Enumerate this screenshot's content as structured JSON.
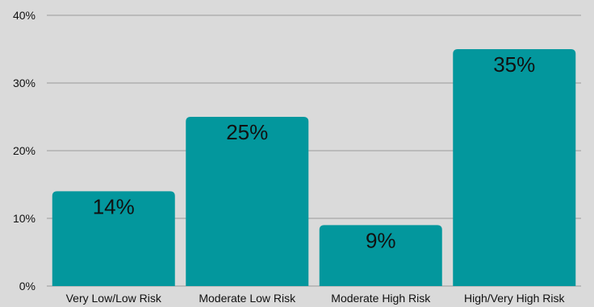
{
  "chart_data": {
    "type": "bar",
    "categories": [
      "Very Low/Low Risk",
      "Moderate Low Risk",
      "Moderate High Risk",
      "High/Very High Risk"
    ],
    "values": [
      14,
      25,
      9,
      35
    ],
    "data_labels": [
      "14%",
      "25%",
      "9%",
      "35%"
    ],
    "ylim": [
      0,
      40
    ],
    "yticks": [
      0,
      10,
      20,
      30,
      40
    ],
    "ytick_labels": [
      "0%",
      "10%",
      "20%",
      "30%",
      "40%"
    ],
    "title": "",
    "xlabel": "",
    "ylabel": "",
    "grid": true,
    "legend": "none",
    "bar_color": "#03979d",
    "background_color": "#dadada",
    "gridline_color": "#9a9a9a"
  }
}
